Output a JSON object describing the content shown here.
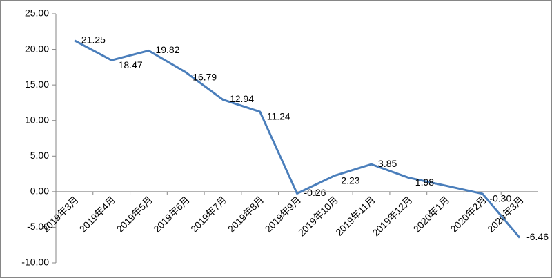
{
  "chart_data": {
    "type": "line",
    "categories": [
      "2019年3月",
      "2019年4月",
      "2019年5月",
      "2019年6月",
      "2019年7月",
      "2019年8月",
      "2019年9月",
      "2019年10月",
      "2019年11月",
      "2019年12月",
      "2020年1月",
      "2020年2月",
      "2020年3月"
    ],
    "values": [
      21.25,
      18.47,
      19.82,
      16.79,
      12.94,
      11.24,
      -0.26,
      2.23,
      3.85,
      1.98,
      0.85,
      -0.3,
      -6.46
    ],
    "value_labels": [
      "21.25",
      "18.47",
      "19.82",
      "16.79",
      "12.94",
      "11.24",
      "-0.26",
      "2.23",
      "3.85",
      "1.98",
      null,
      "-0.30",
      "-6.46"
    ],
    "color": "#4a7ebb",
    "ylim": [
      -10,
      25
    ],
    "yticks": [
      {
        "value": -10,
        "label": "-10.00"
      },
      {
        "value": -5,
        "label": "-5.00"
      },
      {
        "value": 0,
        "label": "0.00"
      },
      {
        "value": 5,
        "label": "5.00"
      },
      {
        "value": 10,
        "label": "10.00"
      },
      {
        "value": 15,
        "label": "15.00"
      },
      {
        "value": 20,
        "label": "20.00"
      },
      {
        "value": 25,
        "label": "25.00"
      }
    ]
  }
}
